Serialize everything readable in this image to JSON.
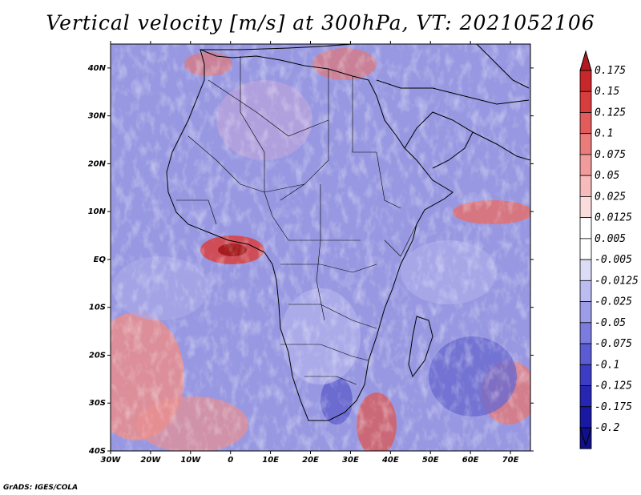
{
  "title": "Vertical velocity [m/s] at 300hPa, VT: 2021052106",
  "credit": "GrADS: IGES/COLA",
  "map": {
    "lon_range": [
      -30,
      75
    ],
    "lat_range": [
      -40,
      45
    ],
    "lat_labels": [
      "40N",
      "30N",
      "20N",
      "10N",
      "EQ",
      "10S",
      "20S",
      "30S",
      "40S"
    ],
    "lat_values": [
      40,
      30,
      20,
      10,
      0,
      -10,
      -20,
      -30,
      -40
    ],
    "lon_labels": [
      "30W",
      "20W",
      "10W",
      "0",
      "10E",
      "20E",
      "30E",
      "40E",
      "50E",
      "60E",
      "70E"
    ],
    "lon_values": [
      -30,
      -20,
      -10,
      0,
      10,
      20,
      30,
      40,
      50,
      60,
      70
    ]
  },
  "colorbar": {
    "labels": [
      "0.175",
      "0.15",
      "0.125",
      "0.1",
      "0.075",
      "0.05",
      "0.025",
      "0.0125",
      "0.005",
      "-0.005",
      "-0.0125",
      "-0.025",
      "-0.05",
      "-0.075",
      "-0.1",
      "-0.125",
      "-0.175",
      "-0.2"
    ],
    "colors": [
      "#b01a20",
      "#c8282c",
      "#d83c3c",
      "#e25c5c",
      "#ea7c7c",
      "#f09c9c",
      "#f6bcbc",
      "#fadcdc",
      "#ffffff",
      "#ffffff",
      "#dcdcf6",
      "#bcbcf0",
      "#9c9ce8",
      "#7c7cde",
      "#5c5cd2",
      "#3c3cc4",
      "#2626b2",
      "#1818a0",
      "#10108a"
    ]
  }
}
